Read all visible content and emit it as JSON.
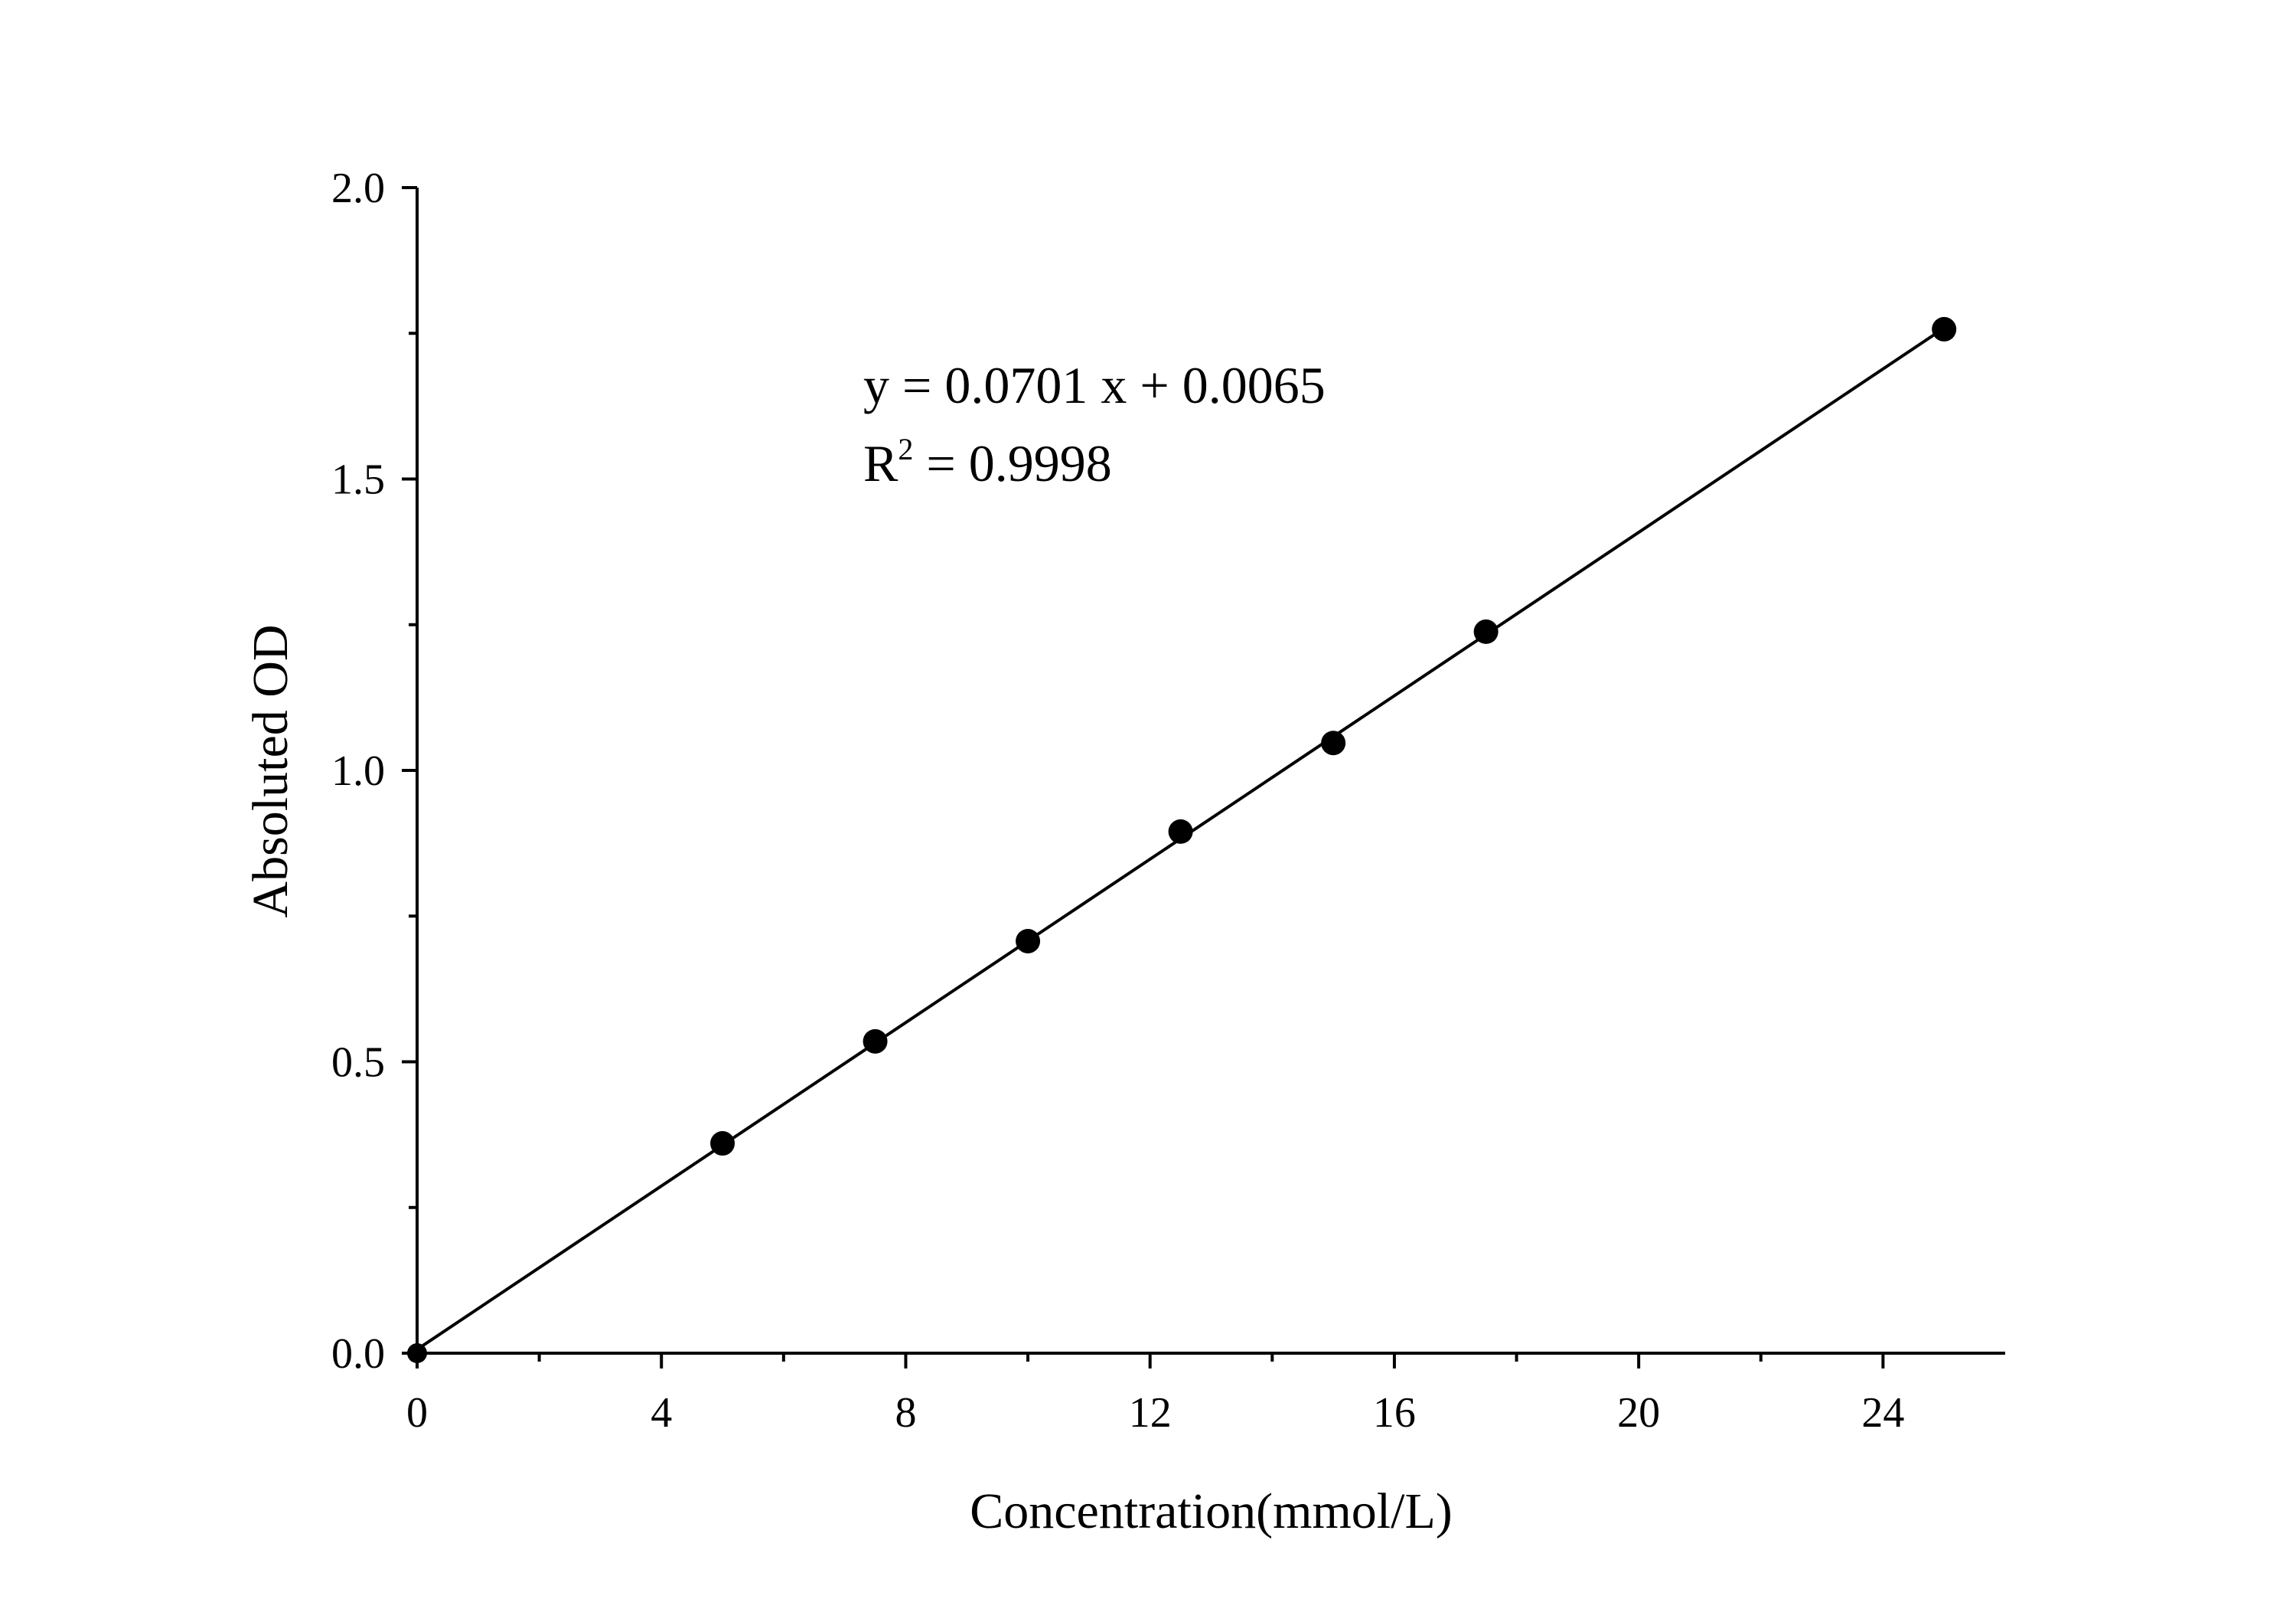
{
  "chart_data": {
    "type": "scatter",
    "title": "",
    "xlabel": "Concentration(mmol/L)",
    "ylabel": "Absoluted OD",
    "xlim": [
      0,
      26
    ],
    "ylim": [
      0,
      2.0
    ],
    "x_ticks": [
      0,
      4,
      8,
      12,
      16,
      20,
      24
    ],
    "y_ticks": [
      0.0,
      0.5,
      1.0,
      1.5,
      2.0
    ],
    "x_tick_labels": [
      "0",
      "4",
      "8",
      "12",
      "16",
      "20",
      "24"
    ],
    "y_tick_labels": [
      "0.0",
      "0.5",
      "1.0",
      "1.5",
      "2.0"
    ],
    "grid": false,
    "legend": "none",
    "series": [
      {
        "x": [
          0,
          5,
          7.5,
          10,
          12.5,
          15,
          17.5,
          25
        ],
        "y": [
          0.0,
          0.36,
          0.535,
          0.707,
          0.895,
          1.047,
          1.238,
          1.757
        ],
        "color": "#000000",
        "marker": "circle"
      }
    ],
    "fit_line": {
      "slope": 0.0701,
      "intercept": 0.0065,
      "x_range": [
        0,
        25
      ]
    },
    "annotations": {
      "equation": "y = 0.0701 x + 0.0065",
      "r2_prefix": "R",
      "r2_sup": "2",
      "r2_value": " = 0.9998"
    }
  }
}
